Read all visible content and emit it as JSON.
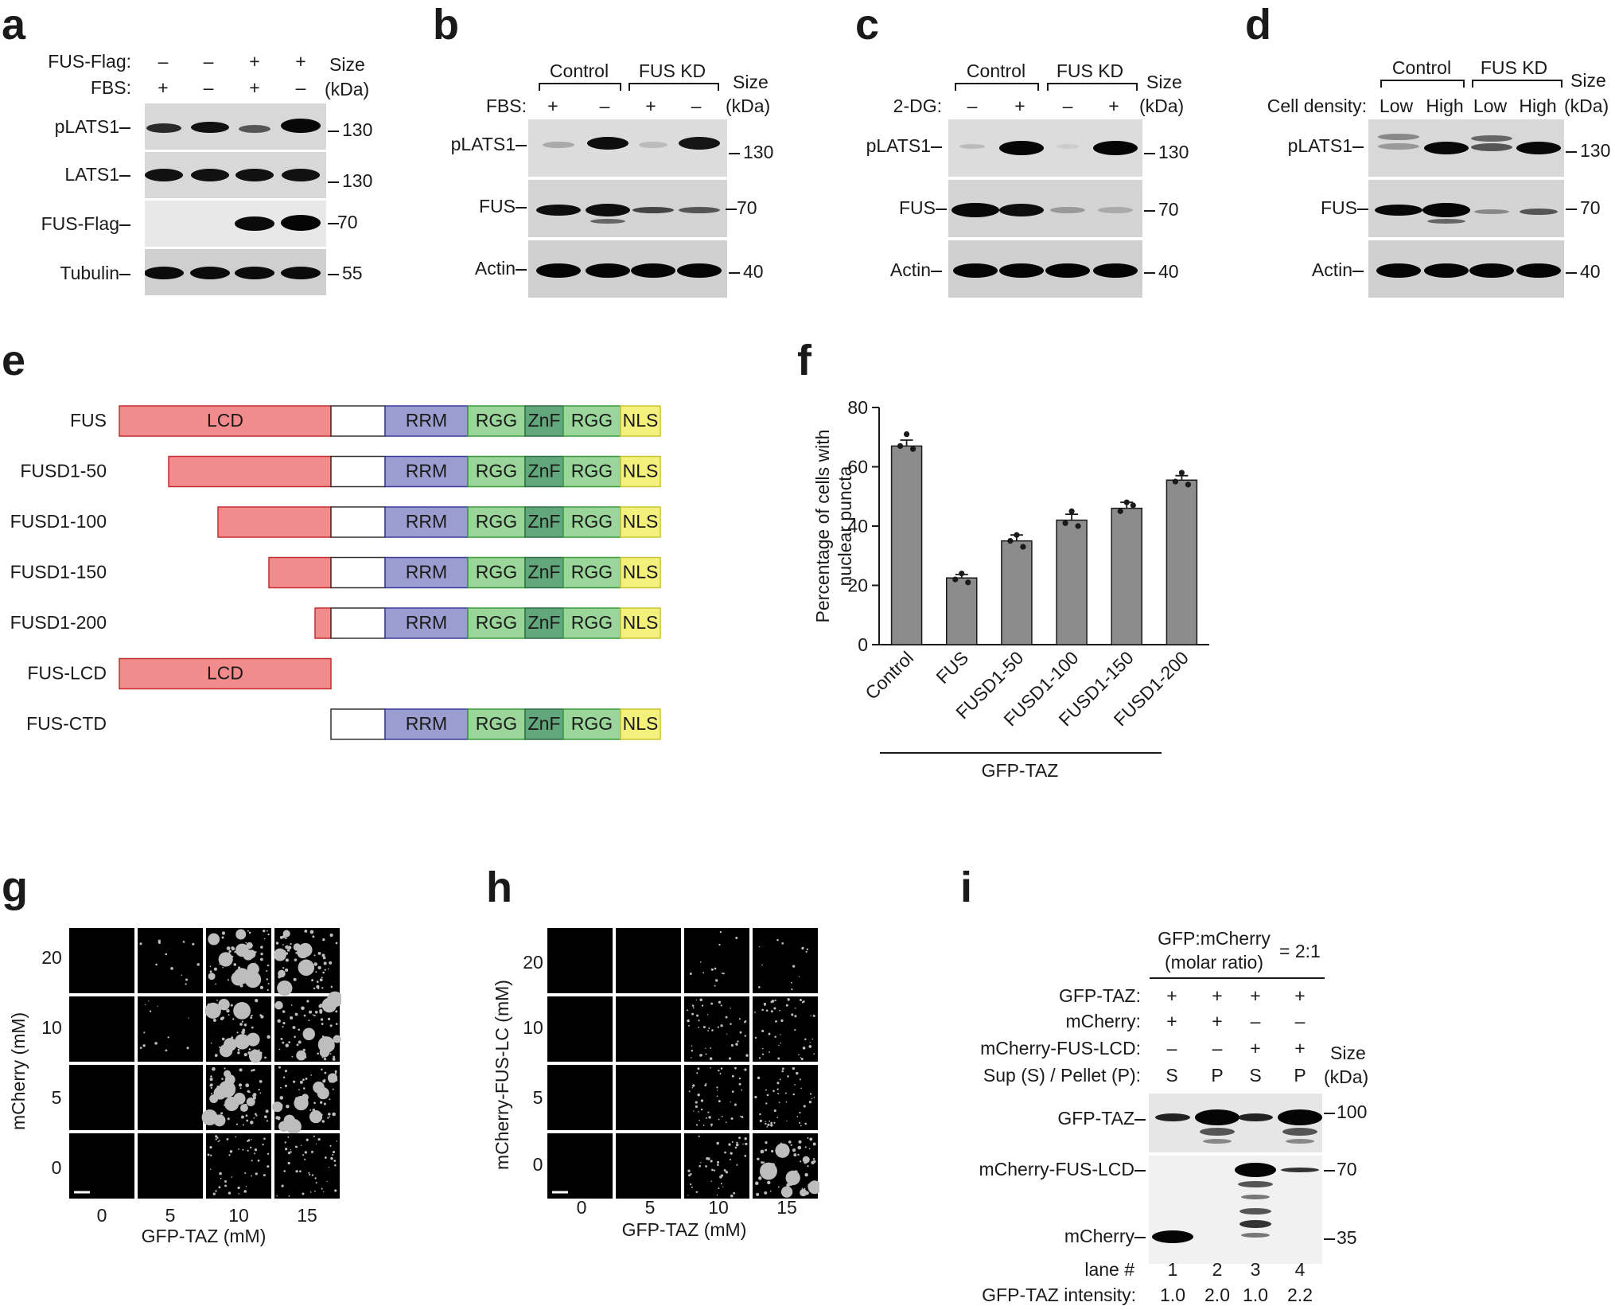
{
  "panels": {
    "a": {
      "letter": "a",
      "conditions": [
        {
          "label": "FUS-Flag:",
          "values": [
            "–",
            "–",
            "+",
            "+"
          ]
        },
        {
          "label": "FBS:",
          "values": [
            "+",
            "–",
            "+",
            "–"
          ]
        }
      ],
      "size_header": "Size",
      "size_unit": "(kDa)",
      "rows": [
        {
          "label": "pLATS1",
          "size": "130"
        },
        {
          "label": "LATS1",
          "size": "130"
        },
        {
          "label": "FUS-Flag",
          "size": "70"
        },
        {
          "label": "Tubulin",
          "size": "55"
        }
      ]
    },
    "b": {
      "letter": "b",
      "groups": [
        "Control",
        "FUS KD"
      ],
      "condition": {
        "label": "FBS:",
        "values": [
          "+",
          "–",
          "+",
          "–"
        ]
      },
      "size_header": "Size",
      "size_unit": "(kDa)",
      "rows": [
        {
          "label": "pLATS1",
          "size": "130"
        },
        {
          "label": "FUS",
          "size": "70"
        },
        {
          "label": "Actin",
          "size": "40"
        }
      ]
    },
    "c": {
      "letter": "c",
      "groups": [
        "Control",
        "FUS KD"
      ],
      "condition": {
        "label": "2-DG:",
        "values": [
          "–",
          "+",
          "–",
          "+"
        ]
      },
      "size_header": "Size",
      "size_unit": "(kDa)",
      "rows": [
        {
          "label": "pLATS1",
          "size": "130"
        },
        {
          "label": "FUS",
          "size": "70"
        },
        {
          "label": "Actin",
          "size": "40"
        }
      ]
    },
    "d": {
      "letter": "d",
      "groups": [
        "Control",
        "FUS KD"
      ],
      "condition": {
        "label": "Cell density:",
        "values": [
          "Low",
          "High",
          "Low",
          "High"
        ]
      },
      "size_header": "Size",
      "size_unit": "(kDa)",
      "rows": [
        {
          "label": "pLATS1",
          "size": "130"
        },
        {
          "label": "FUS",
          "size": "70"
        },
        {
          "label": "Actin",
          "size": "40"
        }
      ]
    },
    "e": {
      "letter": "e",
      "domain_labels": {
        "lcd": "LCD",
        "rrm": "RRM",
        "rgg": "RGG",
        "znf": "ZnF",
        "nls": "NLS"
      },
      "constructs": [
        "FUS",
        "FUSD1-50",
        "FUSD1-100",
        "FUSD1-150",
        "FUSD1-200",
        "FUS-LCD",
        "FUS-CTD"
      ]
    },
    "f": {
      "letter": "f",
      "group_label": "GFP-TAZ"
    },
    "g": {
      "letter": "g",
      "y_label": "mCherry (mM)",
      "x_label": "GFP-TAZ (mM)",
      "y_ticks": [
        "20",
        "10",
        "5",
        "0"
      ],
      "x_ticks": [
        "0",
        "5",
        "10",
        "15"
      ]
    },
    "h": {
      "letter": "h",
      "y_label": "mCherry-FUS-LC (mM)",
      "x_label": "GFP-TAZ (mM)",
      "y_ticks": [
        "20",
        "10",
        "5",
        "0"
      ],
      "x_ticks": [
        "0",
        "5",
        "10",
        "15"
      ]
    },
    "i": {
      "letter": "i",
      "ratio_line1": "GFP:mCherry",
      "ratio_line2": "(molar ratio)",
      "ratio_value": "= 2:1",
      "conditions": [
        {
          "label": "GFP-TAZ:",
          "values": [
            "+",
            "+",
            "+",
            "+"
          ]
        },
        {
          "label": "mCherry:",
          "values": [
            "+",
            "+",
            "–",
            "–"
          ]
        },
        {
          "label": "mCherry-FUS-LCD:",
          "values": [
            "–",
            "–",
            "+",
            "+"
          ]
        },
        {
          "label": "Sup (S) / Pellet (P):",
          "values": [
            "S",
            "P",
            "S",
            "P"
          ]
        }
      ],
      "size_header": "Size",
      "size_unit": "(kDa)",
      "rows": [
        {
          "label": "GFP-TAZ",
          "size": "100"
        },
        {
          "label": "mCherry-FUS-LCD",
          "size": "70"
        },
        {
          "label": "mCherry",
          "size": "35"
        }
      ],
      "lane_label": "lane #",
      "lanes": [
        "1",
        "2",
        "3",
        "4"
      ],
      "intensity_label": "GFP-TAZ intensity:",
      "intensities": [
        "1.0",
        "2.0",
        "1.0",
        "2.2"
      ]
    }
  },
  "chart_data": {
    "type": "bar",
    "categories": [
      "Control",
      "FUS",
      "FUSD1-50",
      "FUSD1-100",
      "FUSD1-150",
      "FUSD1-200"
    ],
    "values": [
      67,
      22.5,
      35,
      42,
      46,
      55.5
    ],
    "errors": [
      2,
      1.2,
      2,
      2,
      2,
      1.5
    ],
    "points": [
      [
        71,
        67,
        66
      ],
      [
        24,
        22,
        21
      ],
      [
        37,
        35,
        33
      ],
      [
        45,
        41,
        40
      ],
      [
        48,
        45,
        47
      ],
      [
        58,
        55,
        54
      ]
    ],
    "ylabel": "Percentage of cells with nuclear puncta",
    "xlabel": "",
    "ylim": [
      0,
      80
    ],
    "yticks": [
      0,
      20,
      40,
      60,
      80
    ],
    "colors": {
      "bar": "#8c8c8c"
    }
  }
}
